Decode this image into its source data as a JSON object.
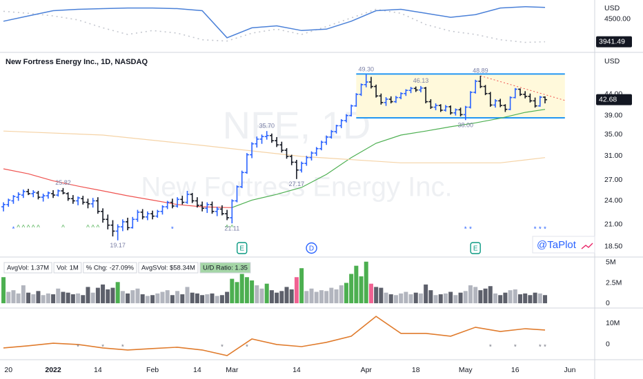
{
  "chart_data": {
    "type": "ohlc",
    "title": "New Fortress Energy Inc., 1D, NASDAQ",
    "currency": "USD",
    "watermark": [
      "NFE, 1D",
      "New Fortress Energy Inc."
    ],
    "brand": "@TaPlot",
    "log_scale": true,
    "up_color": "#2962ff",
    "down_color": "#131722",
    "xlim": [
      -0.7,
      119
    ],
    "xticks": [
      {
        "value": 1,
        "label": "20"
      },
      {
        "value": 10,
        "label": "2022"
      },
      {
        "value": 19,
        "label": "14"
      },
      {
        "value": 30,
        "label": "Feb"
      },
      {
        "value": 39,
        "label": "14"
      },
      {
        "value": 46,
        "label": "Mar"
      },
      {
        "value": 59,
        "label": "14"
      },
      {
        "value": 73,
        "label": "Apr"
      },
      {
        "value": 83,
        "label": "18"
      },
      {
        "value": 93,
        "label": "May"
      },
      {
        "value": 103,
        "label": "16"
      },
      {
        "value": 114,
        "label": "Jun"
      }
    ],
    "ylim": [
      17.5,
      55
    ],
    "yticks": [
      {
        "value": 44,
        "label": "44.00"
      },
      {
        "value": 39,
        "label": "39.00"
      },
      {
        "value": 35,
        "label": "35.00"
      },
      {
        "value": 31,
        "label": "31.00"
      },
      {
        "value": 27,
        "label": "27.00"
      },
      {
        "value": 24,
        "label": "24.00"
      },
      {
        "value": 21,
        "label": "21.00"
      },
      {
        "value": 18.5,
        "label": "18.50"
      }
    ],
    "ohlc": [
      [
        23.2,
        23.8,
        22.6,
        23.5
      ],
      [
        23.5,
        24.3,
        23.2,
        24.1
      ],
      [
        24.0,
        24.8,
        23.6,
        24.6
      ],
      [
        24.5,
        25.2,
        24.0,
        24.9
      ],
      [
        24.8,
        25.6,
        24.4,
        25.3
      ],
      [
        25.3,
        25.7,
        24.8,
        25.0
      ],
      [
        25.0,
        25.5,
        24.5,
        25.2
      ],
      [
        25.1,
        25.4,
        24.2,
        24.5
      ],
      [
        24.5,
        25.0,
        23.9,
        24.7
      ],
      [
        24.7,
        25.3,
        24.3,
        25.1
      ],
      [
        25.0,
        25.5,
        24.4,
        24.8
      ],
      [
        24.8,
        25.6,
        24.6,
        25.4
      ],
      [
        25.4,
        25.82,
        24.9,
        25.1
      ],
      [
        25.0,
        25.2,
        24.0,
        24.3
      ],
      [
        24.3,
        24.8,
        23.6,
        24.0
      ],
      [
        24.0,
        24.6,
        23.4,
        24.4
      ],
      [
        24.3,
        24.7,
        23.5,
        23.8
      ],
      [
        23.8,
        24.3,
        23.0,
        23.6
      ],
      [
        23.6,
        24.4,
        23.1,
        24.0
      ],
      [
        24.0,
        24.5,
        22.3,
        22.6
      ],
      [
        22.6,
        23.0,
        21.2,
        21.6
      ],
      [
        21.6,
        22.2,
        20.4,
        20.9
      ],
      [
        20.9,
        21.5,
        19.6,
        20.2
      ],
      [
        20.2,
        21.0,
        19.17,
        20.7
      ],
      [
        20.7,
        21.6,
        20.2,
        21.3
      ],
      [
        21.3,
        21.8,
        20.3,
        20.6
      ],
      [
        20.6,
        21.9,
        20.5,
        21.6
      ],
      [
        21.6,
        22.8,
        21.3,
        22.5
      ],
      [
        22.5,
        22.9,
        21.6,
        21.9
      ],
      [
        21.9,
        22.6,
        21.5,
        22.3
      ],
      [
        22.3,
        22.7,
        21.6,
        22.0
      ],
      [
        22.0,
        22.8,
        21.8,
        22.6
      ],
      [
        22.6,
        23.4,
        22.2,
        23.2
      ],
      [
        23.2,
        24.0,
        22.9,
        23.8
      ],
      [
        23.8,
        24.3,
        23.0,
        23.3
      ],
      [
        23.3,
        24.5,
        23.1,
        24.2
      ],
      [
        24.2,
        24.7,
        23.5,
        23.8
      ],
      [
        23.8,
        25.4,
        23.6,
        24.9
      ],
      [
        24.9,
        25.1,
        23.7,
        24.0
      ],
      [
        24.0,
        24.5,
        23.1,
        23.4
      ],
      [
        23.4,
        23.9,
        22.6,
        23.0
      ],
      [
        23.0,
        23.8,
        22.4,
        23.5
      ],
      [
        23.5,
        23.9,
        22.3,
        22.6
      ],
      [
        22.6,
        23.2,
        22.0,
        22.9
      ],
      [
        22.9,
        23.4,
        22.1,
        22.3
      ],
      [
        22.3,
        22.8,
        21.5,
        21.8
      ],
      [
        21.8,
        24.2,
        21.11,
        24.0
      ],
      [
        24.0,
        26.2,
        23.8,
        26.0
      ],
      [
        26.0,
        28.5,
        25.8,
        28.2
      ],
      [
        28.2,
        31.5,
        28.0,
        31.2
      ],
      [
        31.2,
        33.5,
        30.6,
        33.2
      ],
      [
        33.2,
        34.6,
        32.5,
        34.1
      ],
      [
        34.1,
        35.0,
        33.2,
        34.6
      ],
      [
        34.6,
        35.7,
        34.0,
        34.8
      ],
      [
        34.8,
        35.2,
        33.4,
        33.8
      ],
      [
        33.8,
        34.5,
        32.6,
        33.0
      ],
      [
        33.0,
        33.6,
        31.6,
        32.0
      ],
      [
        32.0,
        32.4,
        30.5,
        30.9
      ],
      [
        30.9,
        31.2,
        29.4,
        29.9
      ],
      [
        29.9,
        30.3,
        27.17,
        28.6
      ],
      [
        28.6,
        30.0,
        28.2,
        29.7
      ],
      [
        29.7,
        31.0,
        29.3,
        30.7
      ],
      [
        30.7,
        31.8,
        30.2,
        31.5
      ],
      [
        31.5,
        32.6,
        31.0,
        32.3
      ],
      [
        32.3,
        33.8,
        32.0,
        33.5
      ],
      [
        33.5,
        34.8,
        33.0,
        34.5
      ],
      [
        34.5,
        35.9,
        34.2,
        35.6
      ],
      [
        35.6,
        37.0,
        35.2,
        36.8
      ],
      [
        36.8,
        38.2,
        36.3,
        37.9
      ],
      [
        37.9,
        39.3,
        37.5,
        39.0
      ],
      [
        39.0,
        41.5,
        38.8,
        41.2
      ],
      [
        41.2,
        44.3,
        41.0,
        44.0
      ],
      [
        44.0,
        46.8,
        43.6,
        46.5
      ],
      [
        46.5,
        49.3,
        45.8,
        47.2
      ],
      [
        47.2,
        48.6,
        45.5,
        46.0
      ],
      [
        46.0,
        46.5,
        43.2,
        43.6
      ],
      [
        43.6,
        44.2,
        41.5,
        42.0
      ],
      [
        42.0,
        43.3,
        41.2,
        42.8
      ],
      [
        42.8,
        43.5,
        41.8,
        42.2
      ],
      [
        42.2,
        43.6,
        41.9,
        43.2
      ],
      [
        43.2,
        44.5,
        42.8,
        44.2
      ],
      [
        44.2,
        45.3,
        43.6,
        45.0
      ],
      [
        45.0,
        45.9,
        44.3,
        45.5
      ],
      [
        45.5,
        46.0,
        44.6,
        45.1
      ],
      [
        45.1,
        46.13,
        44.5,
        45.6
      ],
      [
        45.6,
        45.9,
        41.8,
        42.2
      ],
      [
        42.2,
        42.8,
        40.5,
        40.9
      ],
      [
        40.9,
        41.8,
        40.2,
        41.3
      ],
      [
        41.3,
        41.6,
        39.8,
        40.2
      ],
      [
        40.2,
        41.4,
        39.9,
        41.0
      ],
      [
        41.0,
        41.3,
        39.2,
        39.6
      ],
      [
        39.6,
        40.6,
        39.0,
        40.3
      ],
      [
        40.3,
        40.8,
        38.8,
        39.2
      ],
      [
        39.2,
        41.2,
        38.0,
        40.9
      ],
      [
        40.9,
        44.8,
        40.6,
        44.5
      ],
      [
        44.5,
        47.8,
        44.2,
        47.4
      ],
      [
        47.4,
        48.89,
        45.6,
        46.0
      ],
      [
        46.0,
        46.4,
        43.8,
        44.2
      ],
      [
        44.2,
        44.6,
        41.0,
        41.4
      ],
      [
        41.4,
        42.8,
        40.8,
        42.4
      ],
      [
        42.4,
        42.9,
        40.9,
        41.3
      ],
      [
        41.3,
        41.6,
        39.8,
        40.4
      ],
      [
        40.4,
        43.5,
        40.2,
        43.2
      ],
      [
        43.2,
        45.6,
        43.0,
        45.3
      ],
      [
        45.3,
        45.5,
        43.6,
        44.0
      ],
      [
        44.0,
        44.8,
        43.0,
        43.5
      ],
      [
        43.5,
        44.2,
        42.0,
        42.4
      ],
      [
        42.4,
        43.2,
        40.8,
        41.2
      ],
      [
        41.2,
        43.6,
        41.0,
        43.3
      ],
      [
        43.3,
        43.5,
        41.8,
        42.68
      ]
    ],
    "moving_averages": [
      {
        "color": "#ef5350",
        "x": [
          0,
          5,
          10,
          15,
          20,
          25,
          30,
          35,
          40,
          45,
          46
        ],
        "values": [
          28.8,
          28.0,
          26.9,
          26.1,
          25.4,
          24.7,
          24.1,
          23.5,
          23.2,
          23.1,
          23.1
        ]
      },
      {
        "color": "#4caf50",
        "x": [
          46,
          50,
          55,
          60,
          65,
          70,
          75,
          80,
          85,
          90,
          95,
          100,
          105,
          109
        ],
        "values": [
          23.1,
          24.1,
          24.9,
          25.9,
          27.9,
          30.7,
          33.3,
          34.9,
          35.7,
          36.6,
          37.4,
          38.4,
          39.7,
          40.4
        ]
      },
      {
        "color": "#f5d3a6",
        "x": [
          0,
          20,
          40,
          60,
          80,
          100,
          109
        ],
        "values": [
          35.7,
          34.9,
          32.9,
          30.9,
          29.8,
          29.8,
          30.7
        ]
      }
    ],
    "range_box": {
      "x": [
        71,
        113
      ],
      "values": [
        49.4,
        38.5
      ]
    },
    "trendline": {
      "x": [
        96,
        113
      ],
      "values": [
        48.89,
        42.5
      ]
    },
    "annotations": [
      {
        "x": 12,
        "value": 25.82,
        "label": "25.82"
      },
      {
        "x": 23,
        "value": 19.17,
        "label": "19.17"
      },
      {
        "x": 46,
        "value": 21.11,
        "label": "21.11"
      },
      {
        "x": 53,
        "value": 35.7,
        "label": "35.70"
      },
      {
        "x": 59,
        "value": 27.17,
        "label": "27.17"
      },
      {
        "x": 73,
        "value": 49.3,
        "label": "49.30"
      },
      {
        "x": 84,
        "value": 46.13,
        "label": "46.13"
      },
      {
        "x": 93,
        "value": 38,
        "label": "38.00"
      },
      {
        "x": 96,
        "value": 48.89,
        "label": "48.89"
      }
    ],
    "events": [
      {
        "x": 48,
        "label": "E"
      },
      {
        "x": 62,
        "label": "D"
      },
      {
        "x": 95,
        "label": "E"
      }
    ],
    "signals": [
      {
        "x": 2,
        "text": "*"
      },
      {
        "x": 3,
        "text": "^"
      },
      {
        "x": 4,
        "text": "^"
      },
      {
        "x": 5,
        "text": "^"
      },
      {
        "x": 6,
        "text": "^"
      },
      {
        "x": 7,
        "text": "^"
      },
      {
        "x": 12,
        "text": "^"
      },
      {
        "x": 17,
        "text": "^"
      },
      {
        "x": 18,
        "text": "^"
      },
      {
        "x": 19,
        "text": "^"
      },
      {
        "x": 34,
        "text": "*"
      },
      {
        "x": 45,
        "text": "^"
      },
      {
        "x": 46,
        "text": "^"
      },
      {
        "x": 93,
        "text": "*"
      },
      {
        "x": 94,
        "text": "*"
      },
      {
        "x": 107,
        "text": "*"
      },
      {
        "x": 108,
        "text": "*"
      },
      {
        "x": 109,
        "text": "*"
      }
    ],
    "volume": {
      "stats": [
        "AvgVol: 1.37M",
        "Vol: 1M",
        "% Chg: -27.09%",
        "AvgSVol: $58.34M",
        "U/D Ratio: 1.35"
      ],
      "ylim": [
        -500000,
        5500000
      ],
      "yticks": [
        {
          "value": 5000000,
          "label": "5M"
        },
        {
          "value": 2500000,
          "label": "2.5M"
        },
        0
      ],
      "values": [
        3200000.0,
        1400000.0,
        1600000.0,
        1200000.0,
        2200000.0,
        1300000.0,
        1100000.0,
        1500000.0,
        1000000.0,
        1200000.0,
        1100000.0,
        1800000.0,
        1400000.0,
        1300000.0,
        1100000.0,
        1200000.0,
        1000000.0,
        2000000.0,
        1300000.0,
        1900000.0,
        2300000.0,
        1700000.0,
        1900000.0,
        2600000.0,
        1500000.0,
        1200000.0,
        1600000.0,
        1800000.0,
        1100000.0,
        900000.0,
        1000000.0,
        1200000.0,
        1400000.0,
        1600000.0,
        1000000.0,
        1500000.0,
        1100000.0,
        2000000.0,
        1300000.0,
        1200000.0,
        1000000.0,
        1100000.0,
        1200000.0,
        900000.0,
        1000000.0,
        1400000.0,
        3000000.0,
        2600000.0,
        3600000.0,
        3200000.0,
        2800000.0,
        2200000.0,
        1800000.0,
        2400000.0,
        1600000.0,
        1300000.0,
        1500000.0,
        2000000.0,
        1700000.0,
        3200000.0,
        4300000.0,
        1500000.0,
        1800000.0,
        1400000.0,
        1600000.0,
        1500000.0,
        1900000.0,
        1700000.0,
        2200000.0,
        2500000.0,
        3600000.0,
        4600000.0,
        3300000.0,
        5100000.0,
        2400000.0,
        2000000.0,
        1900000.0,
        1300000.0,
        1100000.0,
        1000000.0,
        1200000.0,
        1400000.0,
        1100000.0,
        1300000.0,
        1200000.0,
        2300000.0,
        1600000.0,
        1000000.0,
        1100000.0,
        1200000.0,
        1400000.0,
        1000000.0,
        1300000.0,
        1500000.0,
        2200000.0,
        2000000.0,
        1600000.0,
        1800000.0,
        2100000.0,
        1200000.0,
        1000000.0,
        1300000.0,
        1600000.0,
        1700000.0,
        1100000.0,
        1200000.0,
        1000000.0,
        1300000.0,
        1200000.0,
        1000000.0
      ]
    },
    "top_panel": {
      "ylim": [
        3713,
        4943
      ],
      "yticks": [
        {
          "value": 4500,
          "label": "4500.00"
        }
      ],
      "series": [
        {
          "color": "#c3c6ce",
          "x": [
            0,
            5,
            10,
            15,
            20,
            25,
            30,
            35,
            40,
            45,
            50,
            55,
            60,
            65,
            70,
            75,
            80,
            85,
            90,
            95,
            100,
            105,
            109
          ],
          "values": [
            4697,
            4648,
            4582,
            4484,
            4287,
            4123,
            4221,
            4156,
            3992,
            3959,
            4156,
            4254,
            4123,
            4320,
            4533,
            4746,
            4648,
            4369,
            4205,
            4123,
            3992,
            3926,
            3941.49
          ]
        },
        {
          "color": "#4a80d8",
          "x": [
            0,
            5,
            10,
            15,
            20,
            25,
            30,
            35,
            40,
            45,
            50,
            55,
            60,
            65,
            70,
            75,
            80,
            85,
            90,
            95,
            100,
            105,
            109
          ],
          "values": [
            4451,
            4582,
            4713,
            4746,
            4763,
            4779,
            4779,
            4763,
            4713,
            4041,
            4287,
            4336,
            4221,
            4254,
            4451,
            4713,
            4746,
            4648,
            4549,
            4615,
            4779,
            4812,
            4795
          ]
        }
      ]
    },
    "bottom_panel": {
      "ylim": [
        -6500000,
        16800000
      ],
      "yticks": [
        {
          "value": 10000000,
          "label": "10M"
        },
        0
      ],
      "series": [
        {
          "color": "#e07b2c",
          "x": [
            0,
            5,
            10,
            15,
            20,
            25,
            30,
            35,
            40,
            45,
            50,
            55,
            60,
            65,
            70,
            75,
            80,
            85,
            90,
            95,
            100,
            105,
            109
          ],
          "values": [
            -1600000.0,
            -600000.0,
            600000.0,
            0,
            -1600000.0,
            -2600000.0,
            -1900000.0,
            -1300000.0,
            -2600000.0,
            -5200000.0,
            2600000.0,
            0,
            -1000000.0,
            1000000.0,
            3900000.0,
            13200000.0,
            5200000.0,
            5200000.0,
            3900000.0,
            8100000.0,
            6100000.0,
            7400000.0,
            6800000.0
          ]
        }
      ],
      "signals": [
        {
          "x": 15,
          "text": "*"
        },
        {
          "x": 20,
          "text": "*"
        },
        {
          "x": 24,
          "text": "*"
        },
        {
          "x": 44,
          "text": "*"
        },
        {
          "x": 49,
          "text": "*"
        },
        {
          "x": 98,
          "text": "*"
        },
        {
          "x": 103,
          "text": "*"
        },
        {
          "x": 108,
          "text": "*"
        },
        {
          "x": 109,
          "text": "*"
        }
      ]
    }
  }
}
